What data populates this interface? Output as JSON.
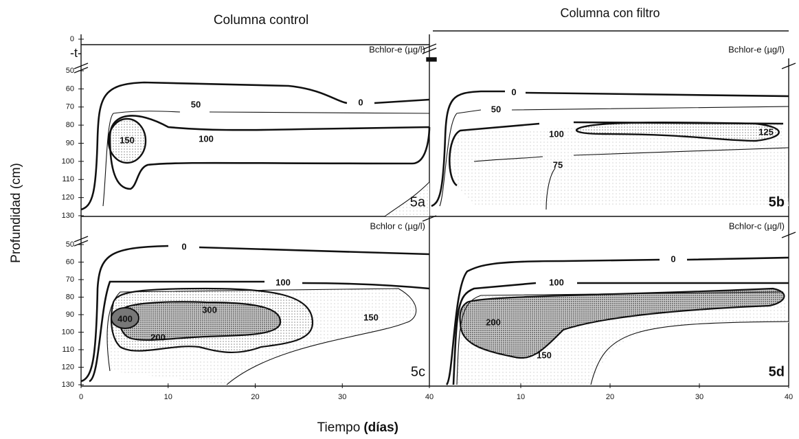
{
  "title_left": "Columna control",
  "title_right": "Columna con filtro",
  "top_mark": "-t-",
  "y_label": "Profundidad (cm)",
  "x_label": "Tiempo",
  "x_label_unit": "(días)",
  "chart_data": [
    {
      "type": "contour",
      "panel": "5a",
      "variable": "Bchlor-e (µg/l)",
      "xlim": [
        0,
        40
      ],
      "xticks": [],
      "ylim": [
        130,
        0
      ],
      "yticks": [
        0,
        50,
        60,
        70,
        80,
        90,
        100,
        110,
        120,
        130
      ],
      "contour_labels": [
        50,
        0,
        150,
        100
      ]
    },
    {
      "type": "contour",
      "panel": "5b",
      "variable": "Bchlor-e (µg/l)",
      "xlim": [
        0,
        40
      ],
      "xticks": [],
      "ylim": [
        130,
        0
      ],
      "yticks": [],
      "contour_labels": [
        0,
        50,
        100,
        125,
        75
      ]
    },
    {
      "type": "contour",
      "panel": "5c",
      "variable": "Bchlor c (µg/l)",
      "xlim": [
        0,
        40
      ],
      "xticks": [
        0,
        10,
        20,
        30,
        40
      ],
      "ylim": [
        130,
        50
      ],
      "yticks": [
        50,
        60,
        70,
        80,
        90,
        100,
        110,
        120,
        130
      ],
      "contour_labels": [
        0,
        100,
        400,
        300,
        150,
        200
      ]
    },
    {
      "type": "contour",
      "panel": "5d",
      "variable": "Bchlor-c (µg/l)",
      "xlim": [
        0,
        40
      ],
      "xticks": [
        10,
        20,
        30,
        40
      ],
      "ylim": [
        130,
        50
      ],
      "yticks": [],
      "contour_labels": [
        0,
        100,
        200,
        150
      ]
    }
  ]
}
